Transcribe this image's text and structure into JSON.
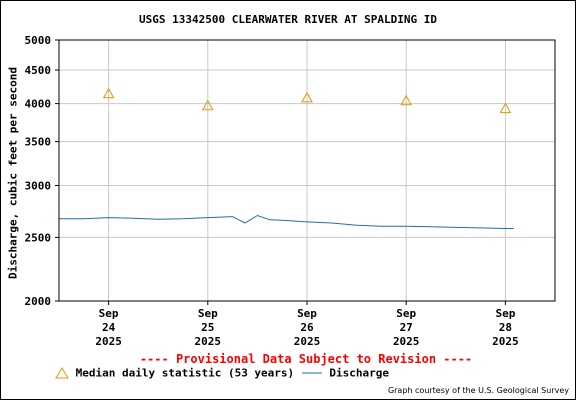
{
  "chart_data": {
    "type": "line",
    "title": "USGS 13342500 CLEARWATER RIVER AT SPALDING ID",
    "ylabel": "Discharge, cubic feet per second",
    "y_scale": "log",
    "ylim": [
      2000,
      5000
    ],
    "y_ticks": [
      2000,
      2500,
      3000,
      3500,
      4000,
      4500,
      5000
    ],
    "x_ticks": [
      {
        "date": "2025-09-24",
        "month": "Sep",
        "day": "24",
        "year": "2025"
      },
      {
        "date": "2025-09-25",
        "month": "Sep",
        "day": "25",
        "year": "2025"
      },
      {
        "date": "2025-09-26",
        "month": "Sep",
        "day": "26",
        "year": "2025"
      },
      {
        "date": "2025-09-27",
        "month": "Sep",
        "day": "27",
        "year": "2025"
      },
      {
        "date": "2025-09-28",
        "month": "Sep",
        "day": "28",
        "year": "2025"
      }
    ],
    "xlim": [
      "2025-09-23 12:00",
      "2025-09-28 12:00"
    ],
    "grid": true,
    "legend_placement": "bottom",
    "series": [
      {
        "name": "Median daily statistic (53 years)",
        "kind": "points",
        "marker": "triangle",
        "color": "#e69500",
        "points": [
          {
            "x": "2025-09-24 00:00",
            "y": 4140
          },
          {
            "x": "2025-09-25 00:00",
            "y": 3970
          },
          {
            "x": "2025-09-26 00:00",
            "y": 4080
          },
          {
            "x": "2025-09-27 00:00",
            "y": 4040
          },
          {
            "x": "2025-09-28 00:00",
            "y": 3930
          }
        ]
      },
      {
        "name": "Discharge",
        "kind": "line",
        "color": "#1f6fa8",
        "points": [
          {
            "x": "2025-09-23 12:00",
            "y": 2670
          },
          {
            "x": "2025-09-23 18:00",
            "y": 2670
          },
          {
            "x": "2025-09-24 00:00",
            "y": 2680
          },
          {
            "x": "2025-09-24 06:00",
            "y": 2675
          },
          {
            "x": "2025-09-24 12:00",
            "y": 2665
          },
          {
            "x": "2025-09-24 18:00",
            "y": 2670
          },
          {
            "x": "2025-09-25 00:00",
            "y": 2680
          },
          {
            "x": "2025-09-25 06:00",
            "y": 2690
          },
          {
            "x": "2025-09-25 09:00",
            "y": 2630
          },
          {
            "x": "2025-09-25 12:00",
            "y": 2700
          },
          {
            "x": "2025-09-25 15:00",
            "y": 2660
          },
          {
            "x": "2025-09-25 18:00",
            "y": 2655
          },
          {
            "x": "2025-09-26 00:00",
            "y": 2640
          },
          {
            "x": "2025-09-26 06:00",
            "y": 2630
          },
          {
            "x": "2025-09-26 12:00",
            "y": 2610
          },
          {
            "x": "2025-09-26 18:00",
            "y": 2600
          },
          {
            "x": "2025-09-27 00:00",
            "y": 2600
          },
          {
            "x": "2025-09-27 06:00",
            "y": 2595
          },
          {
            "x": "2025-09-27 12:00",
            "y": 2590
          },
          {
            "x": "2025-09-27 18:00",
            "y": 2585
          },
          {
            "x": "2025-09-28 00:00",
            "y": 2580
          },
          {
            "x": "2025-09-28 02:00",
            "y": 2580
          }
        ]
      }
    ]
  },
  "notice": "---- Provisional Data Subject to Revision ----",
  "legend": {
    "median_label": "Median daily statistic (53 years)",
    "discharge_label": "Discharge"
  },
  "credit": "Graph courtesy of the U.S. Geological Survey"
}
